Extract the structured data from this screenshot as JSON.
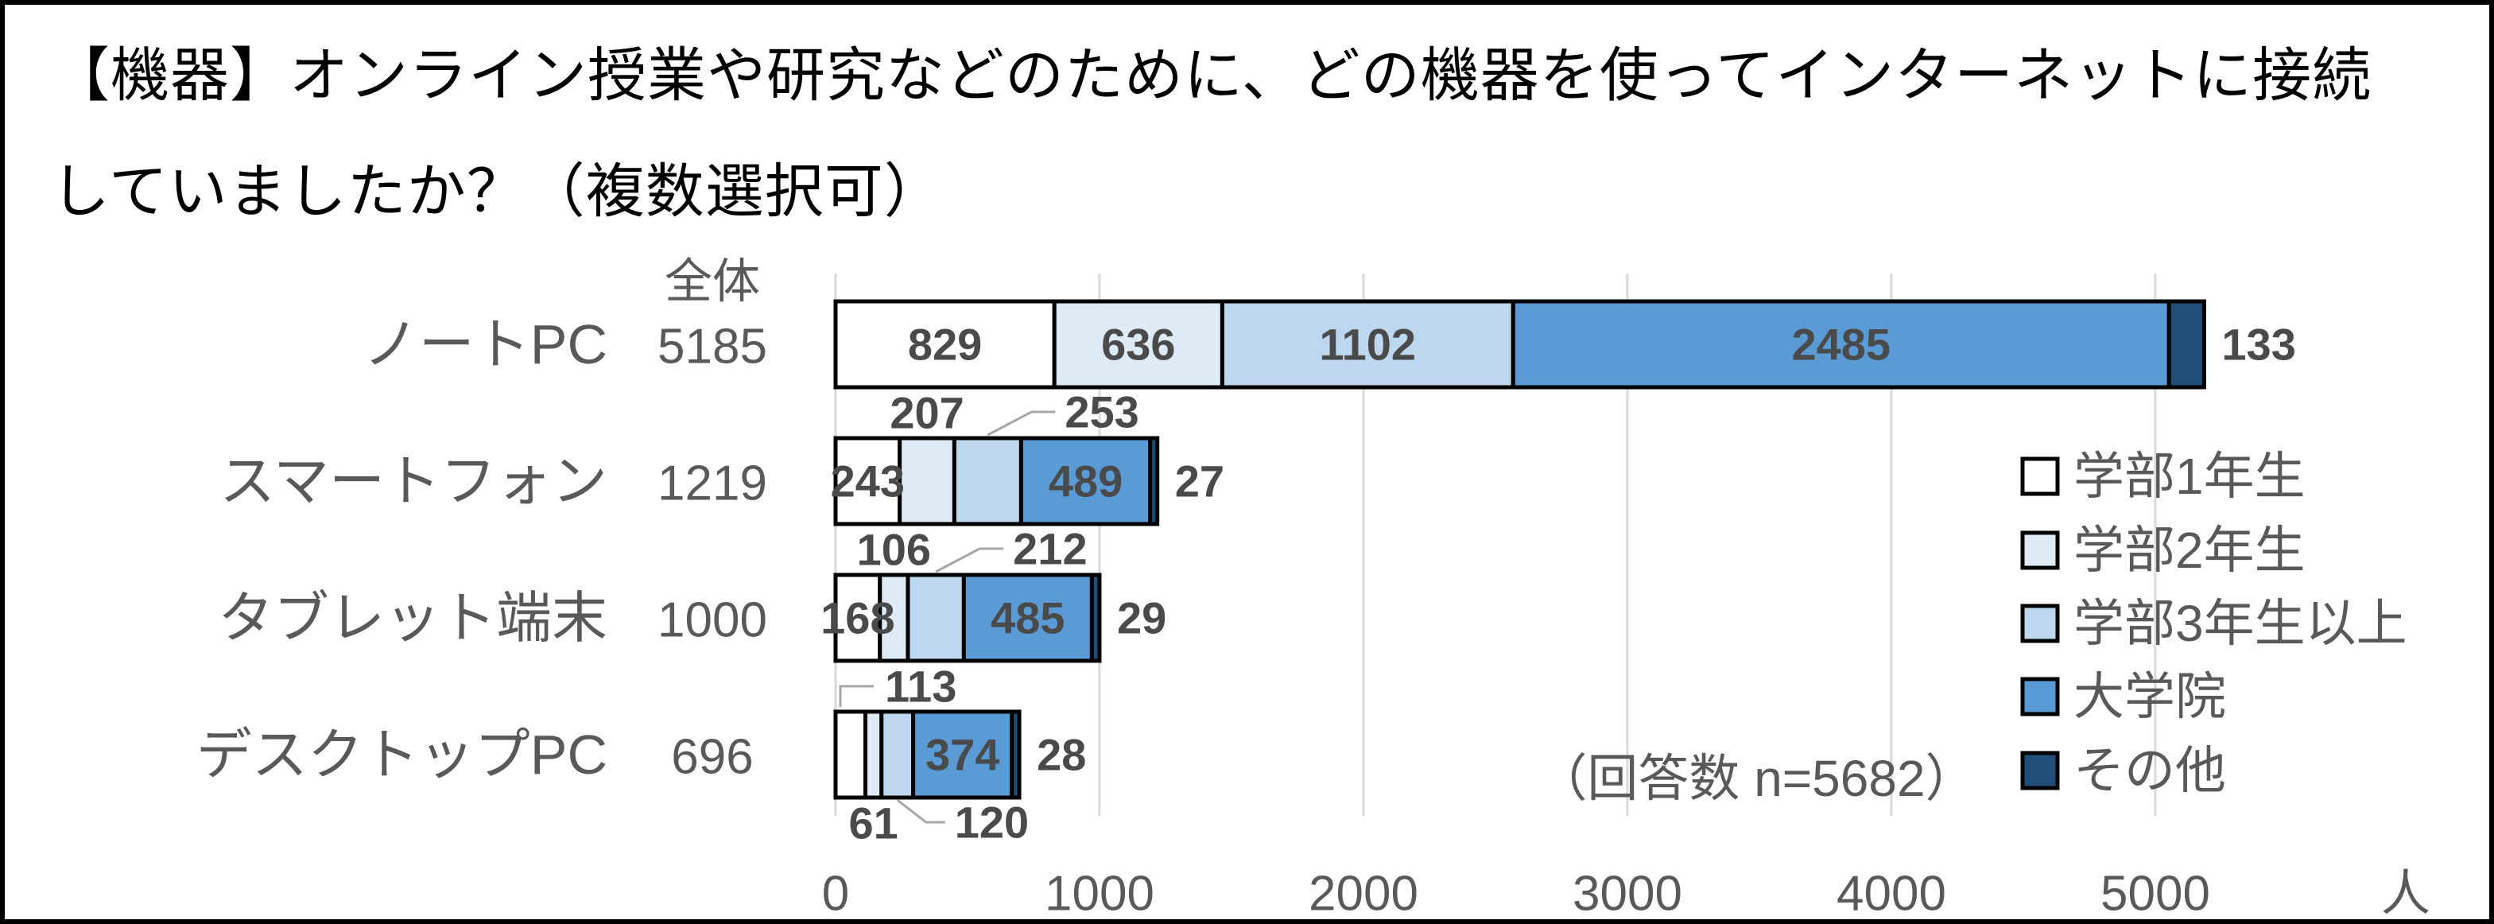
{
  "title": {
    "line1": "【機器】オンライン授業や研究などのために、どの機器を使ってインターネットに接続",
    "line2": "していましたか？（複数選択可）"
  },
  "chart_data": {
    "type": "bar",
    "stacked": true,
    "orientation": "horizontal",
    "total_column_header": "全体",
    "categories": [
      "ノートPC",
      "スマートフォン",
      "タブレット端末",
      "デスクトップPC"
    ],
    "totals": [
      5185,
      1219,
      1000,
      696
    ],
    "series": [
      {
        "name": "学部1年生",
        "color": "#FFFFFF",
        "values": [
          829,
          243,
          168,
          113
        ]
      },
      {
        "name": "学部2年生",
        "color": "#DEEBF7",
        "values": [
          636,
          207,
          106,
          61
        ]
      },
      {
        "name": "学部3年生以上",
        "color": "#BDD7EE",
        "values": [
          1102,
          253,
          212,
          120
        ]
      },
      {
        "name": "大学院",
        "color": "#5B9BD5",
        "values": [
          2485,
          489,
          485,
          374
        ]
      },
      {
        "name": "その他",
        "color": "#1F4E79",
        "values": [
          133,
          27,
          29,
          28
        ]
      }
    ],
    "label_placements": [
      [
        "in",
        "in",
        "in",
        "in",
        "right"
      ],
      [
        "in",
        "above",
        "above-leader",
        "in",
        "right"
      ],
      [
        "in",
        "above",
        "above-leader",
        "in",
        "right"
      ],
      [
        "bracket-up",
        "below",
        "below-leader",
        "in",
        "right"
      ]
    ],
    "x_axis": {
      "min": 0,
      "ticks": [
        0,
        1000,
        2000,
        3000,
        4000,
        5000
      ],
      "unit": "人"
    },
    "annotation": "（回答数 n=5682）",
    "legend_position": "right",
    "grid": true,
    "colors": {
      "grid": "#D9D9D9",
      "bar_border": "#000000",
      "gray_text": "#595959",
      "data_label": "#4A4A4A",
      "leader": "#A6A6A6"
    }
  }
}
